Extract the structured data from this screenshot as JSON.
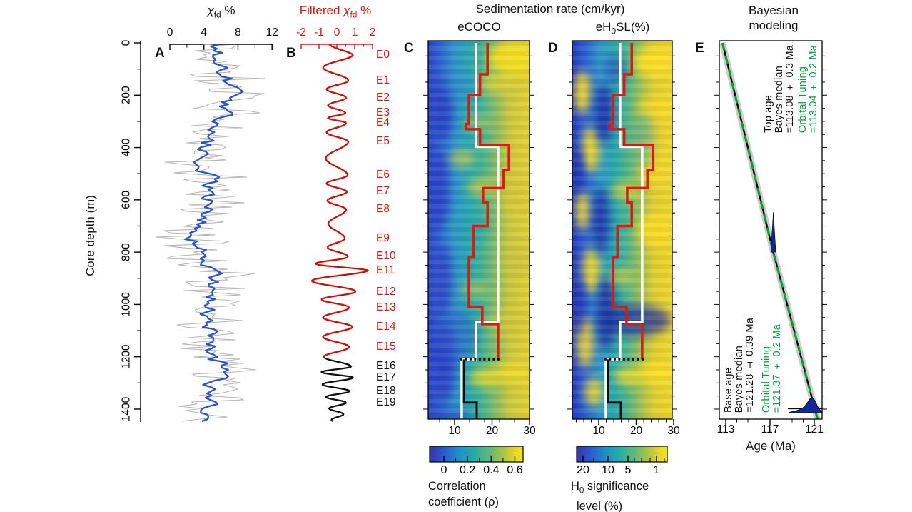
{
  "shared_header": "Sedimentation rate (cm/kyr)",
  "depth_axis": {
    "label": "Core depth (m)",
    "ticks": [
      "0",
      "200",
      "400",
      "600",
      "800",
      "1000",
      "1200",
      "1400"
    ]
  },
  "panels": {
    "a": {
      "letter": "A",
      "title": {
        "chi": "χ",
        "sub": "fd",
        "rest": " %"
      },
      "axis_ticks": [
        "0",
        "4",
        "8",
        "12"
      ]
    },
    "b": {
      "letter": "B",
      "title": {
        "prefix": "Filtered ",
        "chi": "χ",
        "sub": "fd",
        "rest": " %"
      },
      "axis_ticks": [
        "-2",
        "-1",
        "0",
        "1",
        "2"
      ]
    },
    "c": {
      "letter": "C",
      "subtitle": "eCOCO",
      "axis_ticks": [
        "10",
        "20",
        "30"
      ],
      "colorbar": {
        "tick_labels": [
          "0",
          "0.2",
          "0.4",
          "0.6"
        ],
        "label_line1": "Correlation",
        "label_line2": "coefficient (ρ)"
      }
    },
    "d": {
      "letter": "D",
      "subtitle": {
        "pre": "eH",
        "sub": "0",
        "post": "SL(%)"
      },
      "axis_ticks": [
        "10",
        "20",
        "30"
      ],
      "colorbar": {
        "tick_labels": [
          "20",
          "10",
          "5",
          "1"
        ],
        "label1": {
          "pre": "H",
          "sub": "0",
          "post": " significance"
        },
        "label_line2": "level (%)"
      }
    },
    "e": {
      "letter": "E",
      "title_line1": "Bayesian",
      "title_line2": "modeling",
      "axis_label": "Age (Ma)",
      "axis_ticks": [
        "113",
        "117",
        "121"
      ],
      "annotations": {
        "top": {
          "black": [
            "Top age",
            "Bayes median",
            "=113.08 ± 0.3 Ma"
          ],
          "green": [
            "Orbital Tuning",
            "=113.04 ± 0.2 Ma"
          ]
        },
        "base": {
          "black": [
            "Base age",
            "Bayes median",
            "=121.28 ± 0.39 Ma"
          ],
          "green": [
            "Orbital Tuning",
            "=121.37 ± 0.2 Ma"
          ]
        }
      }
    }
  },
  "chart_data": [
    {
      "id": "A",
      "type": "line",
      "xlabel": "χfd %",
      "xlim": [
        0,
        12
      ],
      "x_ticks": [
        0,
        4,
        8,
        12
      ],
      "ylabel": "Core depth (m)",
      "ylim": [
        0,
        1438
      ],
      "series": [
        {
          "name": "raw χfd % (gray)",
          "style": "high-frequency noisy envelope",
          "approx_range": [
            1,
            11
          ]
        },
        {
          "name": "smoothed χfd % (blue)",
          "approx_mean": 5,
          "approx_range": [
            2.5,
            8.5
          ]
        }
      ]
    },
    {
      "id": "B",
      "type": "line",
      "title": "Filtered χfd %",
      "xlim": [
        -2,
        2
      ],
      "x_ticks": [
        -2,
        -1,
        0,
        1,
        2
      ],
      "black_below_depth_m": 1205,
      "cycles": [
        {
          "label": "E0",
          "depth_m": 46,
          "amp": 0.9,
          "color": "red"
        },
        {
          "label": "E1",
          "depth_m": 145,
          "amp": 0.64,
          "color": "red"
        },
        {
          "label": "E2",
          "depth_m": 210,
          "amp": 0.52,
          "color": "red"
        },
        {
          "label": "E3",
          "depth_m": 268,
          "amp": 0.48,
          "color": "red"
        },
        {
          "label": "E4",
          "depth_m": 306,
          "amp": 0.52,
          "color": "red"
        },
        {
          "label": "E5",
          "depth_m": 377,
          "amp": 0.64,
          "color": "red"
        },
        {
          "label": "E6",
          "depth_m": 506,
          "amp": 0.6,
          "color": "red"
        },
        {
          "label": "E7",
          "depth_m": 569,
          "amp": 0.56,
          "color": "red"
        },
        {
          "label": "E8",
          "depth_m": 637,
          "amp": 0.52,
          "color": "red"
        },
        {
          "label": "E9",
          "depth_m": 747,
          "amp": 0.44,
          "color": "red"
        },
        {
          "label": "E10",
          "depth_m": 815,
          "amp": 0.6,
          "color": "red"
        },
        {
          "label": "E11",
          "depth_m": 870,
          "amp": 1.76,
          "color": "red"
        },
        {
          "label": "E12",
          "depth_m": 952,
          "amp": 1.04,
          "color": "red"
        },
        {
          "label": "E13",
          "depth_m": 1012,
          "amp": 0.68,
          "color": "red"
        },
        {
          "label": "E14",
          "depth_m": 1086,
          "amp": 0.88,
          "color": "red"
        },
        {
          "label": "E15",
          "depth_m": 1163,
          "amp": 0.68,
          "color": "red"
        },
        {
          "label": "E16",
          "depth_m": 1237,
          "amp": 0.8,
          "color": "black"
        },
        {
          "label": "E17",
          "depth_m": 1280,
          "amp": 0.92,
          "color": "black"
        },
        {
          "label": "E18",
          "depth_m": 1332,
          "amp": 0.72,
          "color": "black"
        },
        {
          "label": "E19",
          "depth_m": 1376,
          "amp": 0.52,
          "color": "black"
        }
      ]
    },
    {
      "id": "C",
      "type": "heatmap",
      "subtitle": "eCOCO",
      "xlabel_shared": "Sedimentation rate (cm/kyr)",
      "xlim": [
        3,
        30
      ],
      "x_ticks": [
        10,
        20,
        30
      ],
      "ylim": [
        0,
        1438
      ],
      "colorbar": {
        "label": "Correlation coefficient (ρ)",
        "ticks": [
          0,
          0.2,
          0.4,
          0.6
        ],
        "minor_ticks": [
          0.1,
          0.3,
          0.5
        ]
      },
      "separator_depth_m": 1210,
      "optimal_rate_line_red": [
        {
          "rate": 18.8,
          "from": 0,
          "to": 120
        },
        {
          "rate": 16.8,
          "from": 120,
          "to": 200
        },
        {
          "rate": 13.8,
          "from": 200,
          "to": 310
        },
        {
          "rate": 13.0,
          "from": 310,
          "to": 330
        },
        {
          "rate": 16.8,
          "from": 330,
          "to": 390
        },
        {
          "rate": 24.5,
          "from": 390,
          "to": 485
        },
        {
          "rate": 23.0,
          "from": 485,
          "to": 555
        },
        {
          "rate": 17.6,
          "from": 555,
          "to": 610
        },
        {
          "rate": 18.8,
          "from": 610,
          "to": 700
        },
        {
          "rate": 15.0,
          "from": 700,
          "to": 820
        },
        {
          "rate": 13.8,
          "from": 820,
          "to": 1010
        },
        {
          "rate": 17.4,
          "from": 1010,
          "to": 1075
        },
        {
          "rate": 21.6,
          "from": 1075,
          "to": 1210
        }
      ],
      "optimal_rate_line_black": [
        {
          "rate": 12.5,
          "from": 1210,
          "to": 1375
        },
        {
          "rate": 15.9,
          "from": 1375,
          "to": 1438
        }
      ],
      "reference_rate_line_white": [
        {
          "rate": 15.7,
          "from": 0,
          "to": 397
        },
        {
          "rate": 21.6,
          "from": 397,
          "to": 1067
        },
        {
          "rate": 15.7,
          "from": 1067,
          "to": 1210
        },
        {
          "rate": 11.9,
          "from": 1210,
          "to": 1438
        }
      ]
    },
    {
      "id": "D",
      "type": "heatmap",
      "subtitle": "eH0SL(%)",
      "xlabel_shared": "Sedimentation rate (cm/kyr)",
      "xlim": [
        3,
        30
      ],
      "x_ticks": [
        10,
        20,
        30
      ],
      "ylim": [
        0,
        1438
      ],
      "colorbar": {
        "label": "H0 significance level (%)",
        "ticks": [
          20,
          10,
          5,
          1
        ],
        "minor_ticks": [
          15,
          4,
          3,
          2
        ]
      },
      "separator_depth_m": 1210,
      "lines_same_as": "C"
    },
    {
      "id": "E",
      "type": "line",
      "title": "Bayesian modeling",
      "xlabel": "Age (Ma)",
      "xlim": [
        112.4,
        121.7
      ],
      "x_ticks": [
        113,
        117,
        121
      ],
      "ylabel": "Core depth (m)",
      "ylim": [
        0,
        1438
      ],
      "age_depth_model": [
        {
          "age": 112.7,
          "depth_m": 0
        },
        {
          "age": 117.3,
          "depth_m": 800
        },
        {
          "age": 121.3,
          "depth_m": 1438
        }
      ],
      "posterior_markers": [
        {
          "age": 117.3,
          "depth_m": 800
        },
        {
          "age": 121.0,
          "depth_m": 1438
        }
      ],
      "top_age": {
        "bayes_median_ma": 113.08,
        "bayes_uncert_ma": 0.3,
        "orbital_tuning_ma": 113.04,
        "orbital_uncert_ma": 0.2
      },
      "base_age": {
        "bayes_median_ma": 121.28,
        "bayes_uncert_ma": 0.39,
        "orbital_tuning_ma": 121.37,
        "orbital_uncert_ma": 0.2
      }
    }
  ],
  "colors": {
    "red_series": "#cc1008",
    "red_text": "#e3120b",
    "red_step_line": "#e01812",
    "blue_series": "#2d55c4",
    "gray_series": "#b5b5b5",
    "green_text": "#00a13e",
    "green_dash": "#0aa02c",
    "navy_density": "#16259c",
    "gray_envelope": "#cccccc",
    "heatmap_low": "#2c46c2",
    "heatmap_mid": "#27a8ad",
    "heatmap_high": "#e8d22e"
  }
}
